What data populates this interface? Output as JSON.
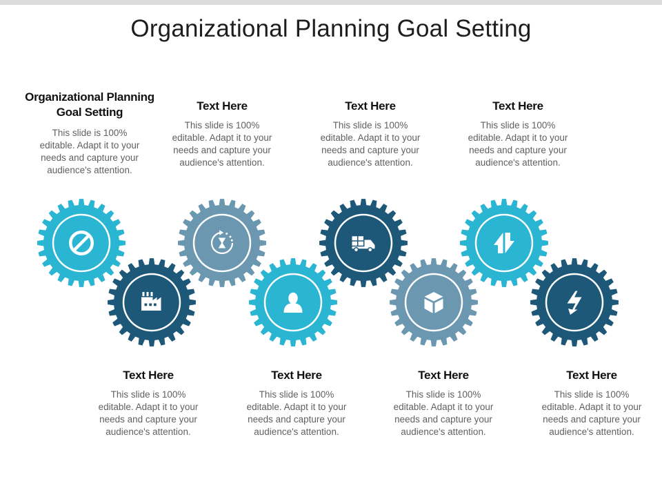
{
  "title": "Organizational Planning Goal Setting",
  "colors": {
    "cyan": "#2ab5d3",
    "navy": "#1e5878",
    "slate": "#6b98b0"
  },
  "blocks": [
    {
      "heading": "Organizational Planning Goal Setting",
      "body": "This slide is 100% editable. Adapt it to your needs and capture your audience's attention."
    },
    {
      "heading": "Text Here",
      "body": "This slide is 100% editable. Adapt it to your needs and capture your audience's attention."
    },
    {
      "heading": "Text Here",
      "body": "This slide is 100% editable. Adapt it to your needs and capture your audience's attention."
    },
    {
      "heading": "Text Here",
      "body": "This slide is 100% editable. Adapt it to your needs and capture your audience's attention."
    },
    {
      "heading": "Text Here",
      "body": "This slide is 100% editable. Adapt it to your needs and capture your audience's attention."
    },
    {
      "heading": "Text Here",
      "body": "This slide is 100% editable. Adapt it to your needs and capture your audience's attention."
    },
    {
      "heading": "Text Here",
      "body": "This slide is 100% editable. Adapt it to your needs and capture your audience's attention."
    },
    {
      "heading": "Text Here",
      "body": "This slide is 100% editable. Adapt it to your needs and capture your audience's attention."
    }
  ],
  "gears": [
    {
      "color": "cyan",
      "icon": "prohibited-icon"
    },
    {
      "color": "navy",
      "icon": "factory-icon"
    },
    {
      "color": "slate",
      "icon": "time-cycle-icon"
    },
    {
      "color": "cyan",
      "icon": "user-icon"
    },
    {
      "color": "navy",
      "icon": "truck-icon"
    },
    {
      "color": "slate",
      "icon": "box-icon"
    },
    {
      "color": "cyan",
      "icon": "up-down-arrows-icon"
    },
    {
      "color": "navy",
      "icon": "lightning-arrow-icon"
    }
  ]
}
